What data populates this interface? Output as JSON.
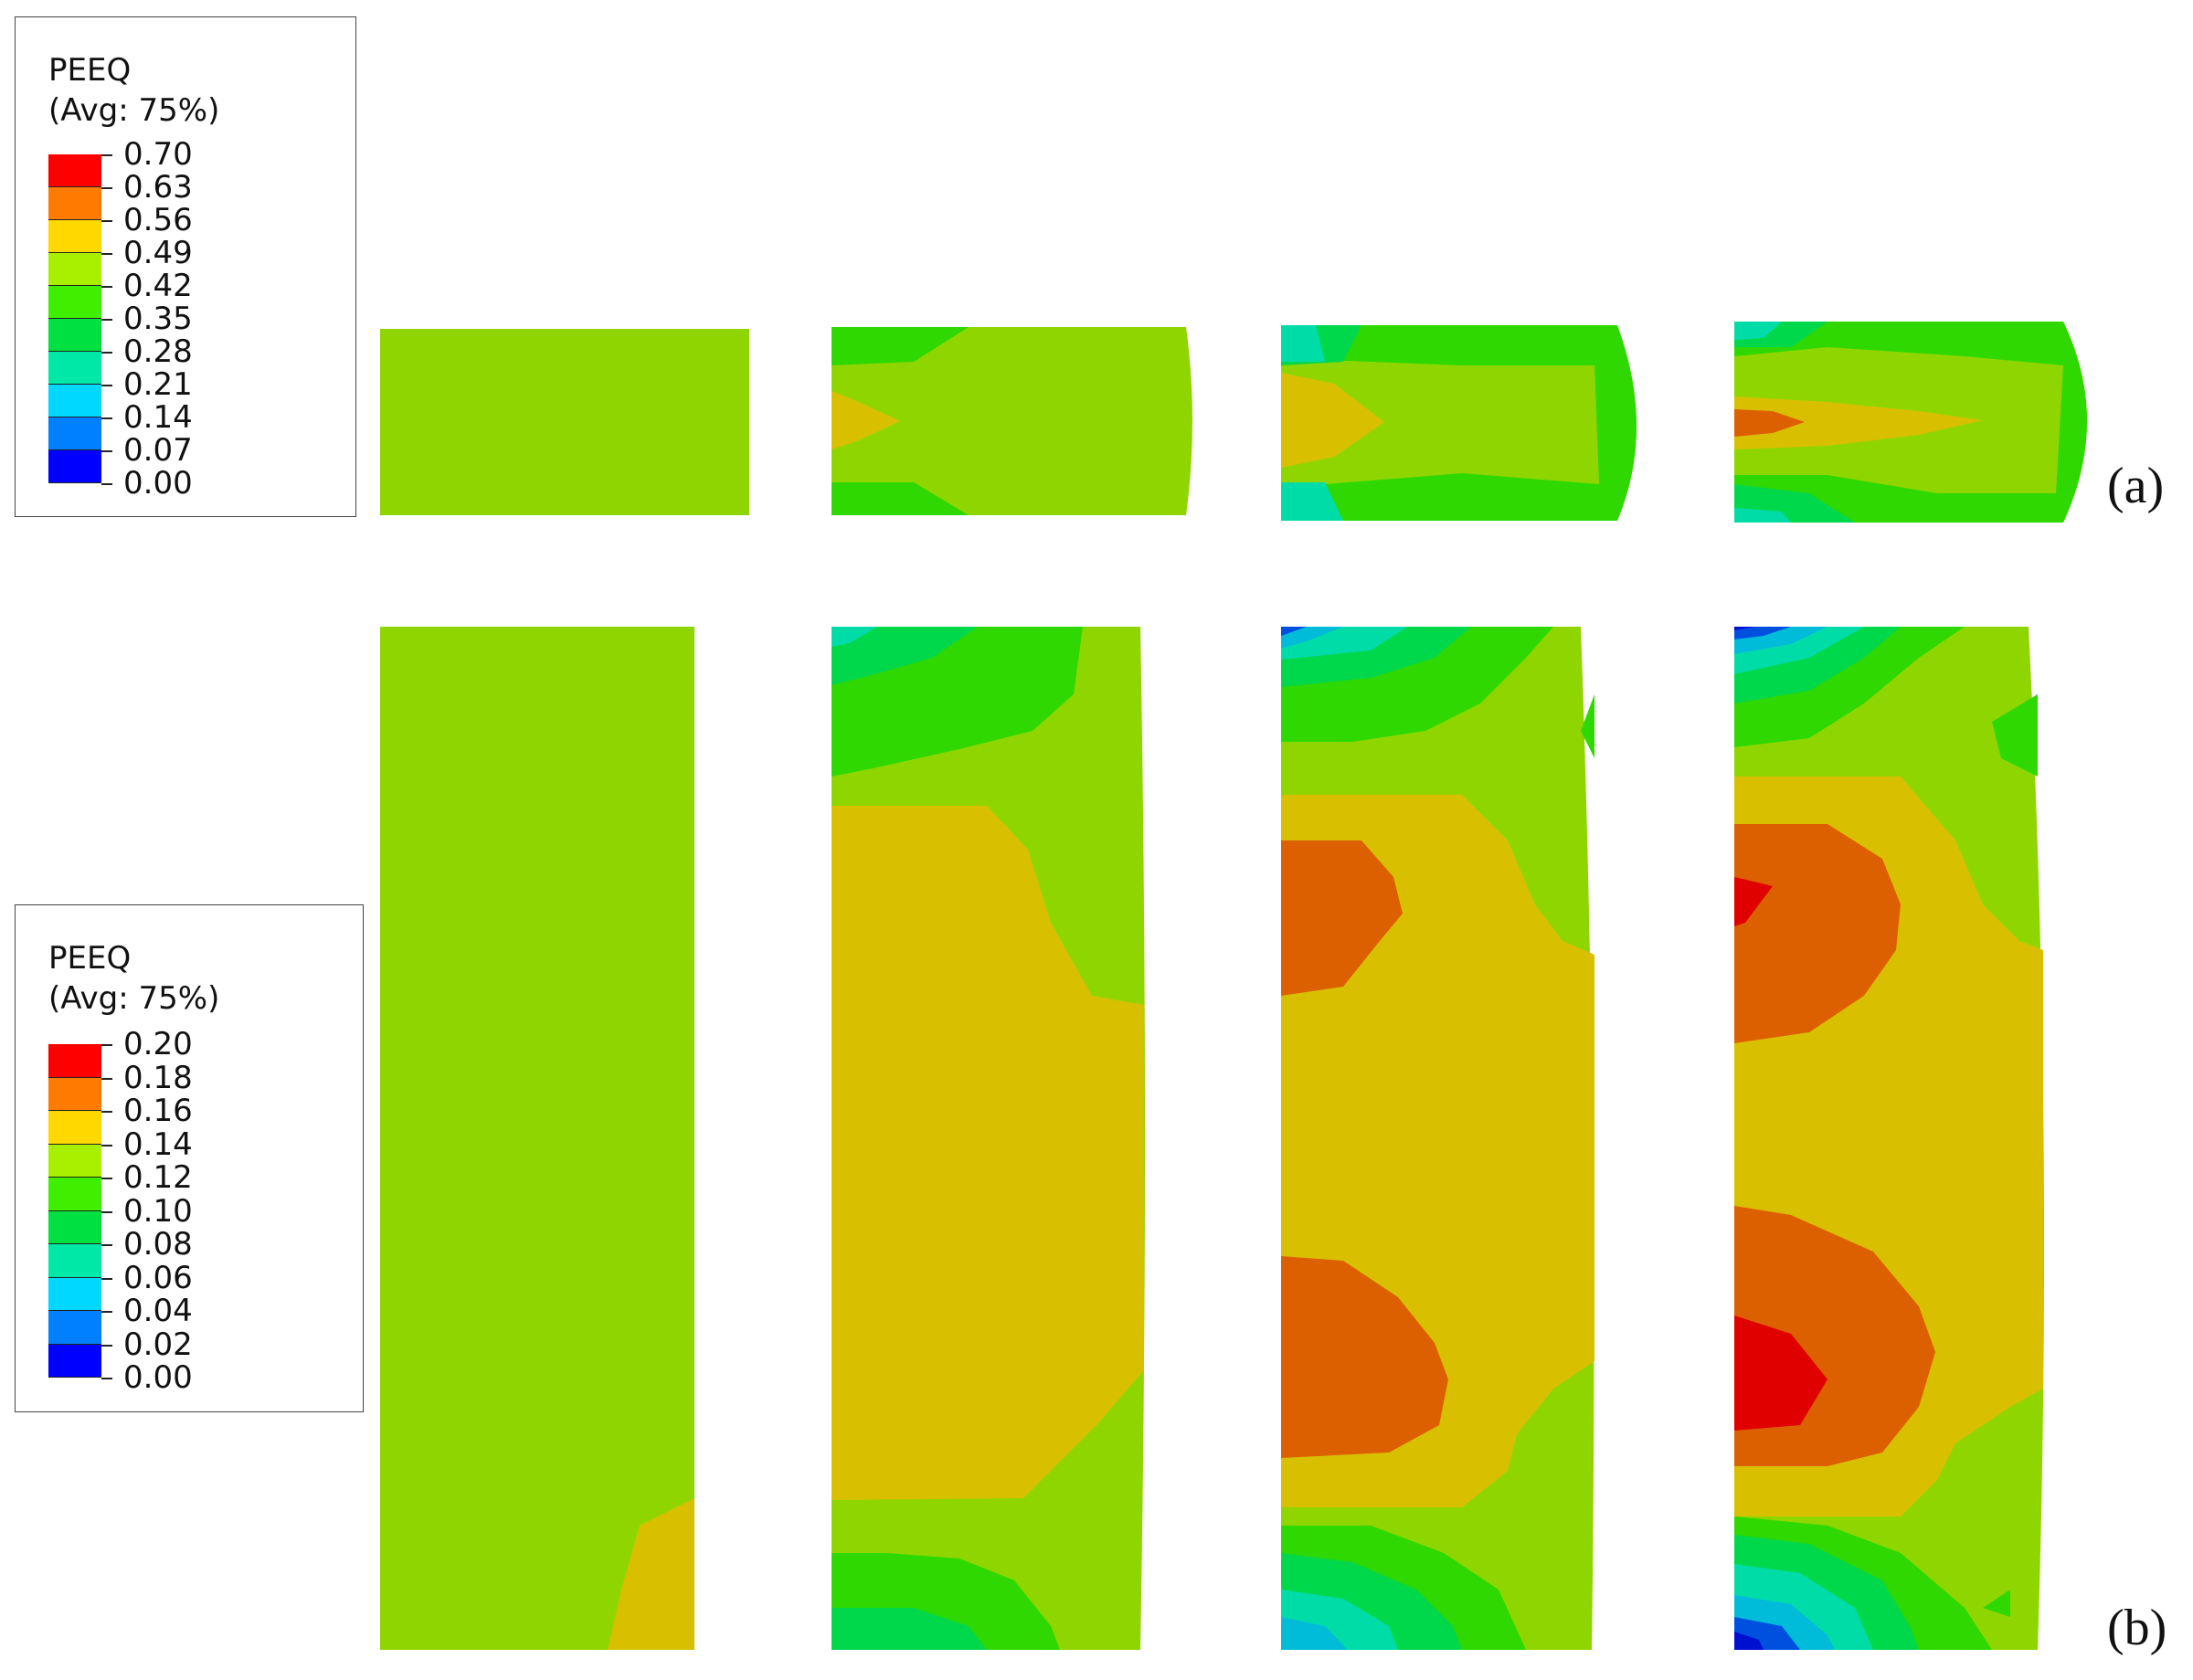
{
  "legend_a": {
    "title": "PEEQ",
    "subtitle": "(Avg: 75%)",
    "ticks": [
      "0.70",
      "0.63",
      "0.56",
      "0.49",
      "0.42",
      "0.35",
      "0.28",
      "0.21",
      "0.14",
      "0.07",
      "0.00"
    ]
  },
  "legend_b": {
    "title": "PEEQ",
    "subtitle": "(Avg: 75%)",
    "ticks": [
      "0.20",
      "0.18",
      "0.16",
      "0.14",
      "0.12",
      "0.10",
      "0.08",
      "0.06",
      "0.04",
      "0.02",
      "0.00"
    ]
  },
  "colormap": [
    "#ff0000",
    "#ff7a00",
    "#ffd800",
    "#a8f000",
    "#40ee00",
    "#00e040",
    "#00e8a8",
    "#00d8ff",
    "#0080ff",
    "#0000ff"
  ],
  "contour_colors": {
    "red": "#e00000",
    "orange": "#dc6000",
    "yellow": "#d8c000",
    "yellow_green": "#8fd600",
    "green": "#2ed800",
    "green_cyan": "#00d84c",
    "cyan": "#00dca8",
    "light_blue": "#00bcd8",
    "blue": "#0050e0",
    "dark_blue": "#0010d0"
  },
  "panel_labels": {
    "a": "(a)",
    "b": "(b)"
  }
}
